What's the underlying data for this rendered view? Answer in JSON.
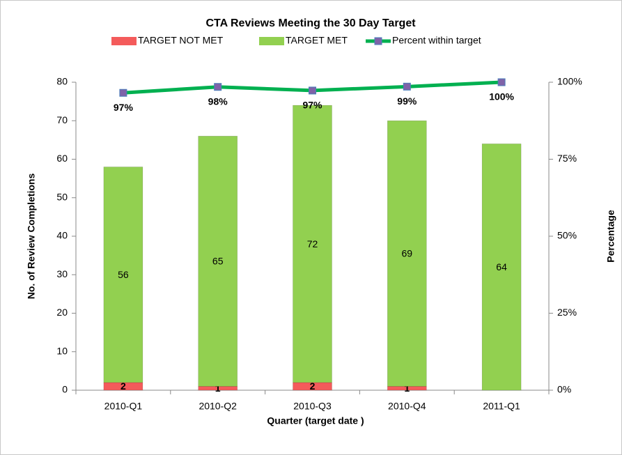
{
  "chart_data": {
    "type": "bar",
    "title": "CTA Reviews Meeting the 30 Day Target",
    "xlabel": "Quarter (target date )",
    "ylabel": "No. of Review Completions",
    "y2label": "Percentage",
    "categories": [
      "2010-Q1",
      "2010-Q2",
      "2010-Q3",
      "2010-Q4",
      "2011-Q1"
    ],
    "series": [
      {
        "name": "TARGET NOT MET",
        "type": "bar",
        "color": "#f45b5b",
        "values": [
          2,
          1,
          2,
          1,
          0
        ]
      },
      {
        "name": "TARGET MET",
        "type": "bar",
        "color": "#92d050",
        "values": [
          56,
          65,
          72,
          69,
          64
        ]
      },
      {
        "name": "Percent within target",
        "type": "line",
        "axis": "y2",
        "color": "#00b050",
        "marker_color": "#7f63a8",
        "values": [
          96.55,
          98.48,
          97.3,
          98.57,
          100
        ],
        "value_labels": [
          "97%",
          "98%",
          "97%",
          "99%",
          "100%"
        ]
      }
    ],
    "ylim": [
      0,
      80
    ],
    "yticks": [
      0,
      10,
      20,
      30,
      40,
      50,
      60,
      70,
      80
    ],
    "y2lim": [
      0,
      100
    ],
    "y2ticks": [
      {
        "value": 0,
        "label": "0%"
      },
      {
        "value": 25,
        "label": "25%"
      },
      {
        "value": 50,
        "label": "50%"
      },
      {
        "value": 75,
        "label": "75%"
      },
      {
        "value": 100,
        "label": "100%"
      }
    ],
    "stacked": true,
    "legend": "top",
    "grid": false
  }
}
